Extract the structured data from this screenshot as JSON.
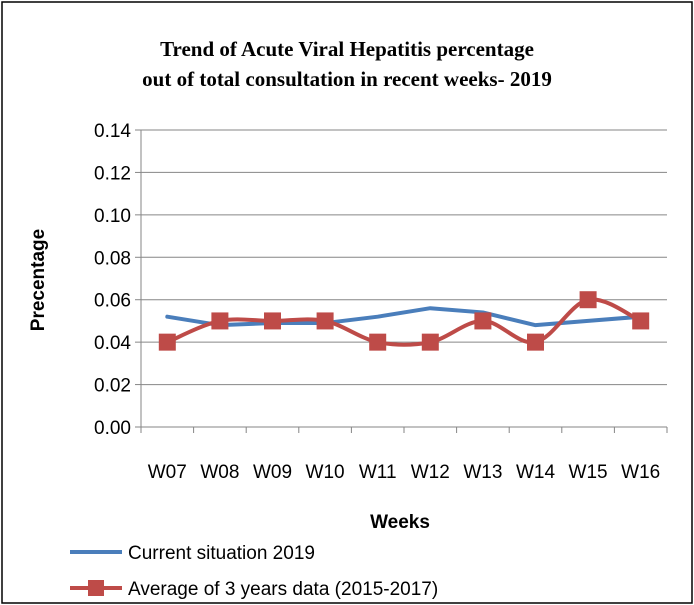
{
  "chart_data": {
    "type": "line",
    "title": "Trend of Acute Viral Hepatitis percentage",
    "subtitle": "out of total consultation in recent weeks- 2019",
    "xlabel": "Weeks",
    "ylabel": "Precentage",
    "categories": [
      "W07",
      "W08",
      "W09",
      "W10",
      "W11",
      "W12",
      "W13",
      "W14",
      "W15",
      "W16"
    ],
    "ylim": [
      0,
      0.14
    ],
    "yticks": [
      "0.00",
      "0.02",
      "0.04",
      "0.06",
      "0.08",
      "0.10",
      "0.12",
      "0.14"
    ],
    "grid": true,
    "legend_position": "bottom",
    "series": [
      {
        "name": "Current situation 2019",
        "color": "#4a7ebb",
        "marker": "none",
        "smooth": false,
        "values": [
          0.052,
          0.048,
          0.049,
          0.049,
          0.052,
          0.056,
          0.054,
          0.048,
          0.05,
          0.052
        ]
      },
      {
        "name": "Average of 3 years data (2015-2017)",
        "color": "#be4b48",
        "marker": "square",
        "smooth": true,
        "values": [
          0.04,
          0.05,
          0.05,
          0.05,
          0.04,
          0.04,
          0.05,
          0.04,
          0.06,
          0.05
        ]
      }
    ]
  }
}
